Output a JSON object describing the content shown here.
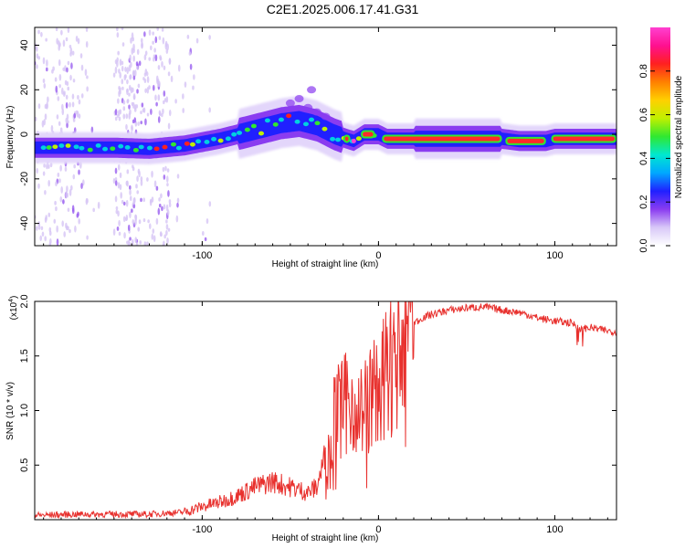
{
  "title": "C2E1.2025.006.17.41.G31",
  "colors": {
    "snr_line": "#e8312e",
    "spectrogram_background": "#ffffff"
  },
  "chart_data": [
    {
      "type": "heatmap",
      "xlabel": "Height of straight line (km)",
      "ylabel": "Frequency (Hz)",
      "xlim": [
        -195,
        135
      ],
      "ylim": [
        -50,
        48
      ],
      "x_ticks": [
        -100,
        0,
        100
      ],
      "y_ticks": [
        -40,
        -20,
        0,
        20,
        40
      ],
      "colorbar": {
        "label": "Normalized spectral amplitude",
        "range": [
          0,
          1
        ],
        "ticks": [
          "0.0",
          "0.2",
          "0.4",
          "0.6",
          "0.8"
        ],
        "colormap": [
          "#ffffff",
          "#d8c8f8",
          "#8a3cf0",
          "#2020ff",
          "#00a8ff",
          "#00e8d0",
          "#30e830",
          "#c0f000",
          "#ffd000",
          "#ff8000",
          "#ff2020",
          "#ff1090",
          "#ff40d0"
        ]
      },
      "ridge": {
        "description_points": [
          [
            -190,
            -6
          ],
          [
            -170,
            -6
          ],
          [
            -150,
            -6
          ],
          [
            -130,
            -6.5
          ],
          [
            -110,
            -5
          ],
          [
            -90,
            -2
          ],
          [
            -70,
            2
          ],
          [
            -55,
            5
          ],
          [
            -45,
            6
          ],
          [
            -35,
            4
          ],
          [
            -25,
            0
          ],
          [
            -18,
            -2
          ],
          [
            -14,
            -3
          ],
          [
            -8,
            0
          ],
          [
            0,
            0
          ],
          [
            5,
            -2
          ],
          [
            20,
            -2
          ],
          [
            40,
            -2
          ],
          [
            60,
            -2
          ],
          [
            70,
            -2
          ],
          [
            80,
            -3
          ],
          [
            95,
            -3
          ],
          [
            100,
            -2
          ],
          [
            120,
            -2
          ],
          [
            135,
            -2
          ]
        ]
      }
    },
    {
      "type": "line",
      "xlabel": "Height of straight line (km)",
      "ylabel": "SNR (10 * v/v)",
      "multiplier_label": "(x10",
      "multiplier_exp": "4",
      "xlim": [
        -195,
        135
      ],
      "ylim": [
        0,
        2.0
      ],
      "x_ticks": [
        -100,
        0,
        100
      ],
      "y_ticks": [
        "0.5",
        "1.0",
        "1.5",
        "2.0"
      ],
      "series": [
        {
          "x": [
            -195,
            -170,
            -150,
            -130,
            -110,
            -100,
            -90,
            -80,
            -70,
            -60,
            -50,
            -40,
            -35,
            -30,
            -25,
            -20,
            -15,
            -10,
            -5,
            0,
            5,
            10,
            15,
            20,
            25,
            30,
            40,
            50,
            60,
            70,
            80,
            90,
            100,
            110,
            115,
            120,
            130,
            135
          ],
          "values": [
            0.04,
            0.05,
            0.05,
            0.05,
            0.07,
            0.12,
            0.16,
            0.22,
            0.3,
            0.35,
            0.3,
            0.25,
            0.3,
            0.6,
            0.95,
            1.05,
            1.1,
            1.0,
            1.1,
            1.2,
            1.35,
            1.55,
            1.7,
            1.8,
            1.85,
            1.88,
            1.92,
            1.94,
            1.95,
            1.92,
            1.9,
            1.85,
            1.82,
            1.8,
            1.75,
            1.76,
            1.73,
            1.72
          ]
        }
      ]
    }
  ]
}
